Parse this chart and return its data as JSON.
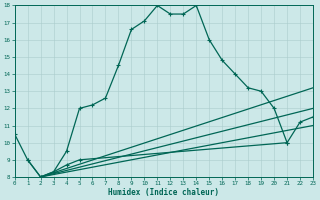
{
  "xlabel": "Humidex (Indice chaleur)",
  "bg_color": "#cce8e8",
  "grid_color": "#aacccc",
  "line_color": "#006655",
  "xlim": [
    0,
    23
  ],
  "ylim": [
    8,
    18
  ],
  "xticks": [
    0,
    1,
    2,
    3,
    4,
    5,
    6,
    7,
    8,
    9,
    10,
    11,
    12,
    13,
    14,
    15,
    16,
    17,
    18,
    19,
    20,
    21,
    22,
    23
  ],
  "yticks": [
    8,
    9,
    10,
    11,
    12,
    13,
    14,
    15,
    16,
    17,
    18
  ],
  "series1_x": [
    0,
    1,
    2,
    3,
    4,
    5,
    6,
    7,
    8,
    9,
    10,
    11,
    12,
    13,
    14,
    15,
    16,
    17,
    18,
    19,
    20,
    21
  ],
  "series1_y": [
    10.5,
    9.0,
    8.0,
    8.3,
    9.5,
    12.0,
    12.2,
    12.6,
    14.5,
    16.6,
    17.1,
    18.0,
    17.5,
    17.5,
    18.0,
    16.0,
    14.8,
    14.0,
    13.2,
    13.0,
    12.0,
    10.0
  ],
  "series2_x": [
    1,
    2,
    3,
    4,
    5,
    21,
    22,
    23
  ],
  "series2_y": [
    9.0,
    8.0,
    8.3,
    8.7,
    9.0,
    10.0,
    11.2,
    11.5
  ],
  "series3_x": [
    2,
    23
  ],
  "series3_y": [
    8.0,
    13.2
  ],
  "series4_x": [
    2,
    23
  ],
  "series4_y": [
    8.0,
    12.0
  ],
  "series5_x": [
    2,
    23
  ],
  "series5_y": [
    8.0,
    11.0
  ]
}
